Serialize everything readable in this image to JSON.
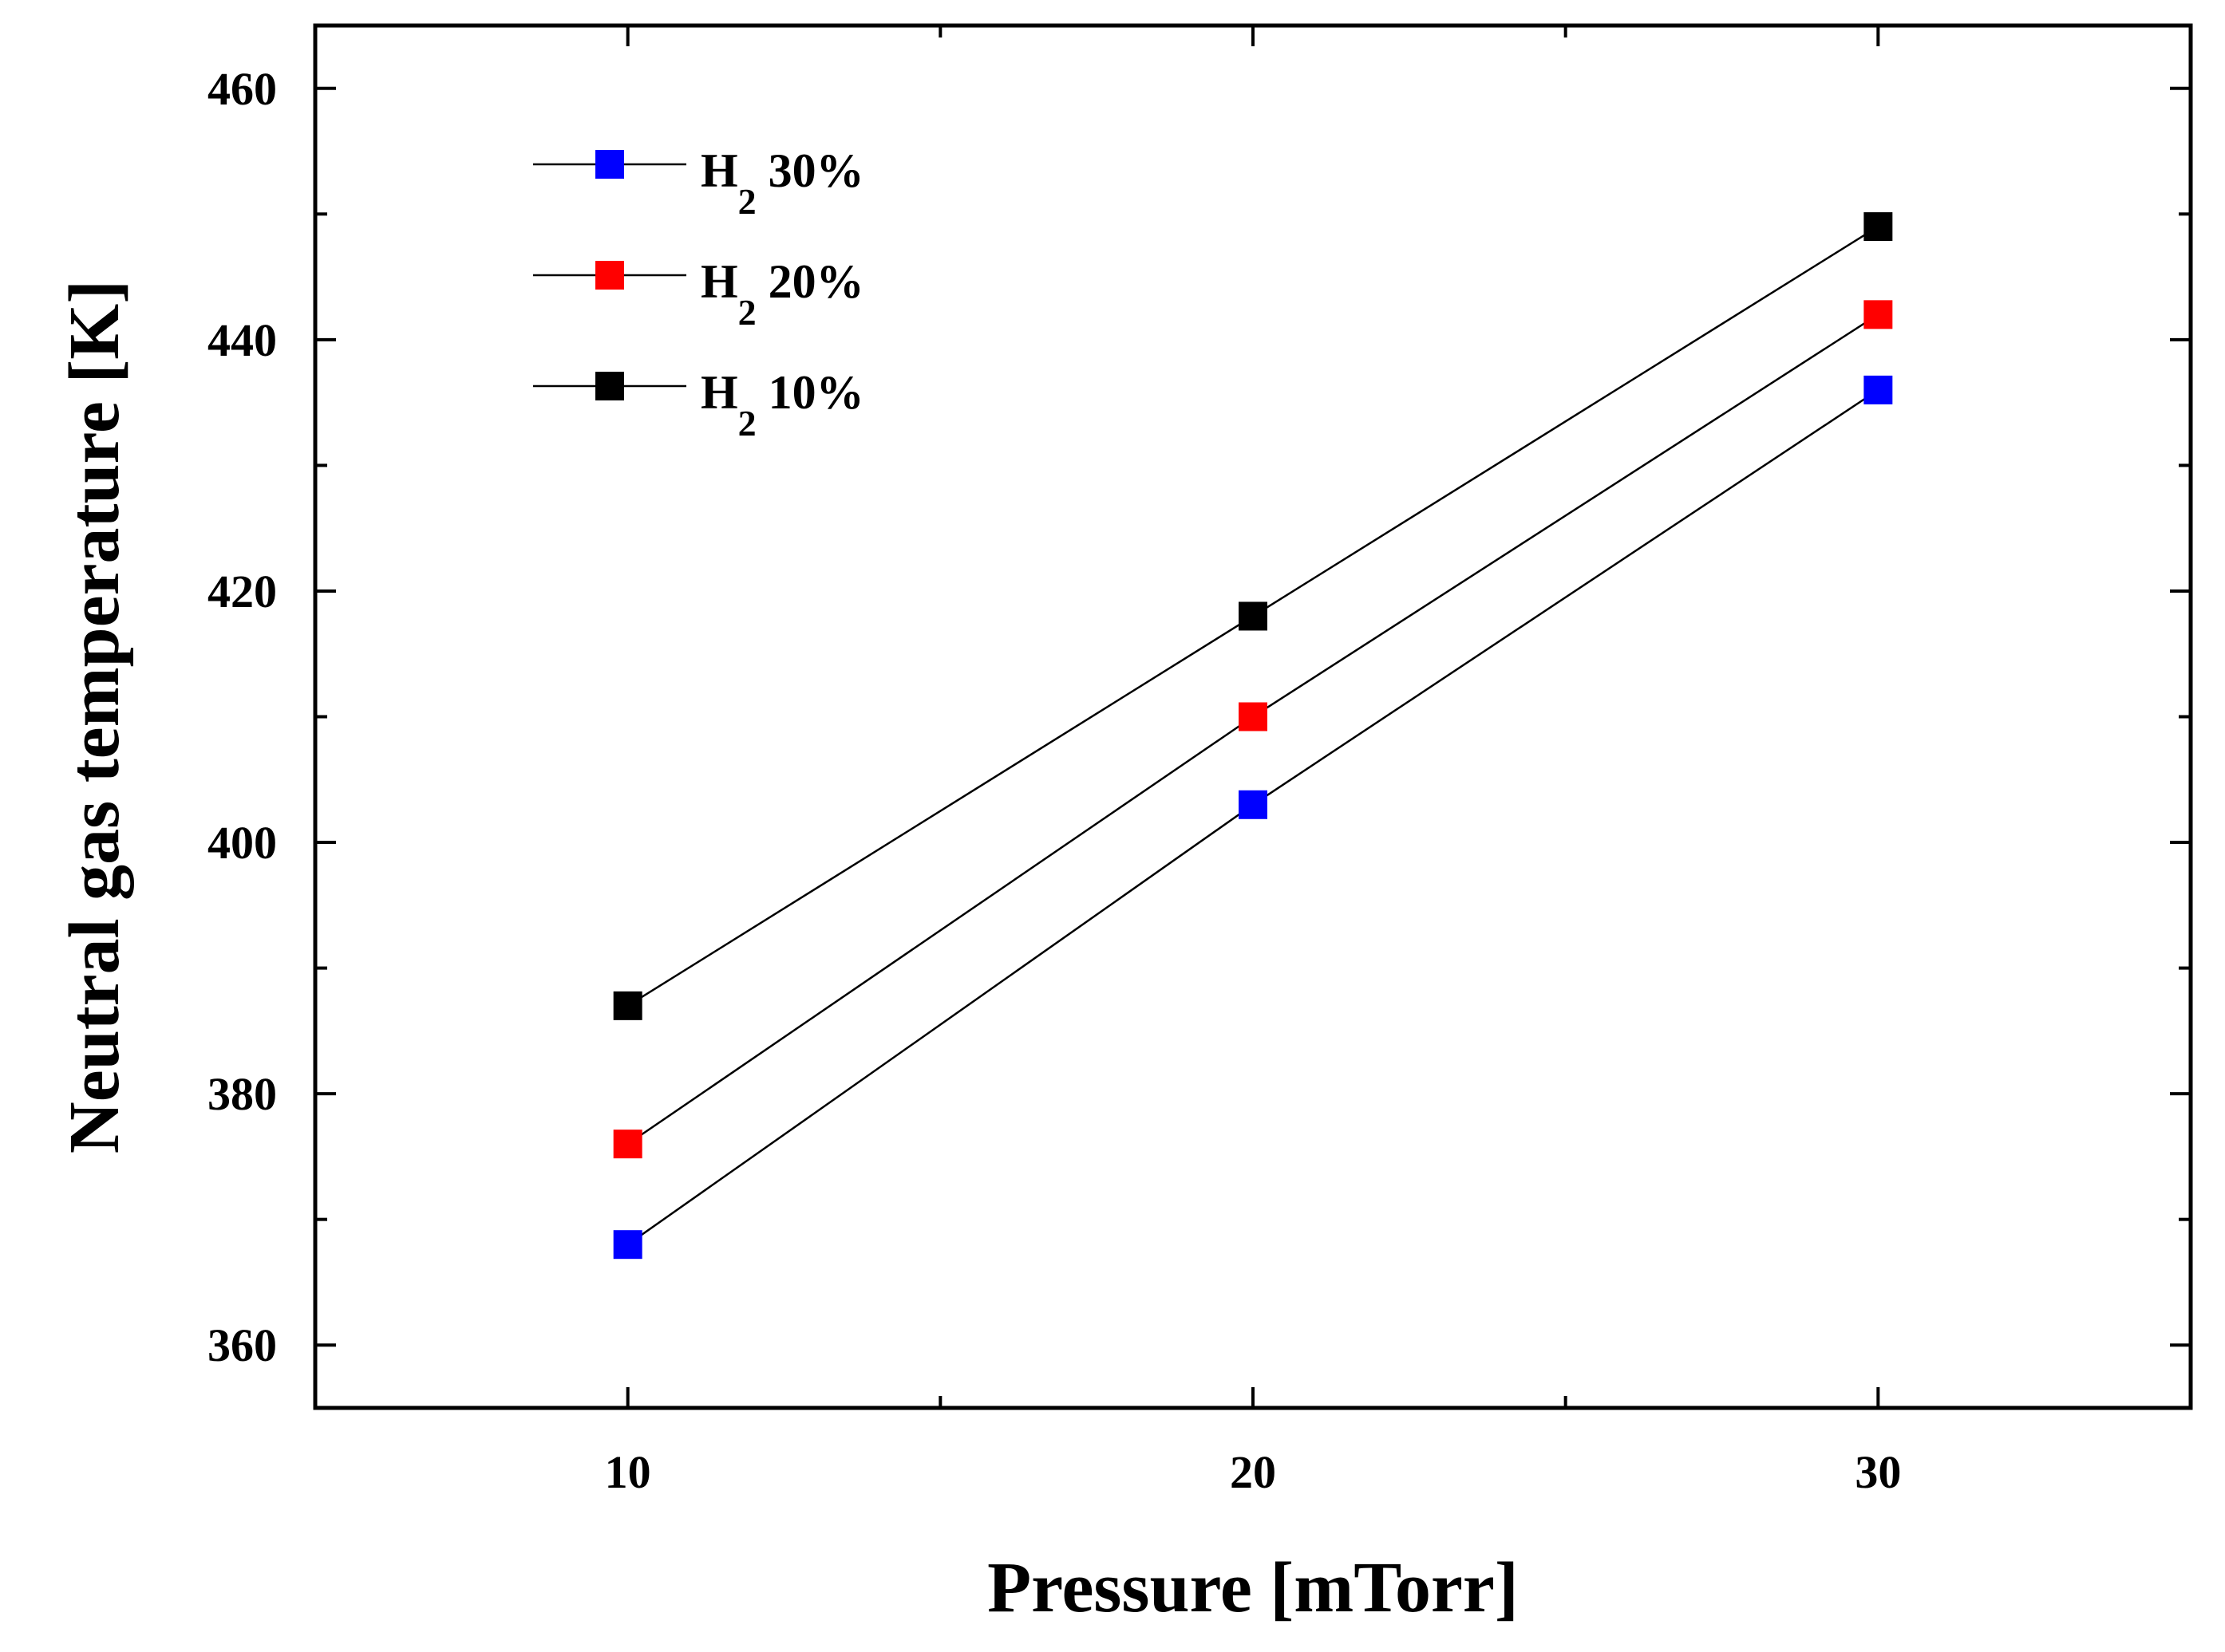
{
  "chart_data": {
    "type": "line",
    "xlabel": "Pressure [mTorr]",
    "ylabel": "Neutral gas temperature [K]",
    "x": [
      10,
      20,
      30
    ],
    "xlim": [
      5,
      35
    ],
    "ylim": [
      355,
      465
    ],
    "x_ticks": [
      10,
      20,
      30
    ],
    "x_minor_ticks": [
      5,
      15,
      25,
      35
    ],
    "y_ticks": [
      360,
      380,
      400,
      420,
      440,
      460
    ],
    "y_minor_ticks": [
      370,
      390,
      410,
      430,
      450
    ],
    "grid": false,
    "legend_position": "top-left",
    "series": [
      {
        "name": "H2 30%",
        "label_main": "H",
        "label_sub": "2",
        "label_rest": " 30%",
        "color": "#0000ff",
        "values": [
          368,
          403,
          436
        ]
      },
      {
        "name": "H2 20%",
        "label_main": "H",
        "label_sub": "2",
        "label_rest": " 20%",
        "color": "#ff0000",
        "values": [
          376,
          410,
          442
        ]
      },
      {
        "name": "H2 10%",
        "label_main": "H",
        "label_sub": "2",
        "label_rest": " 10%",
        "color": "#000000",
        "values": [
          387,
          418,
          449
        ]
      }
    ]
  }
}
